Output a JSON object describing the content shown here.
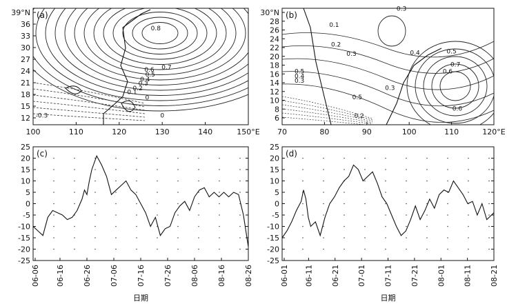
{
  "figure": {
    "panels": [
      "(a)",
      "(b)",
      "(c)",
      "(d)"
    ],
    "xlabel_c": "日期",
    "xlabel_d": "日期"
  },
  "chart_data": [
    {
      "type": "contour",
      "panel": "(a)",
      "x_ticks": [
        "100",
        "110",
        "120",
        "130",
        "140",
        "150°E"
      ],
      "y_ticks": [
        "39°N",
        "36",
        "33",
        "30",
        "27",
        "24",
        "21",
        "18",
        "15",
        "12"
      ],
      "xlim": [
        100,
        150
      ],
      "ylim": [
        10,
        39
      ],
      "contour_labels": [
        {
          "text": "0.8",
          "lon": 128.5,
          "lat": 33.5
        },
        {
          "text": "0.7",
          "lon": 131.0,
          "lat": 23.8
        },
        {
          "text": "0.6",
          "lon": 127.0,
          "lat": 23.2
        },
        {
          "text": "0.5",
          "lon": 127.2,
          "lat": 22.0
        },
        {
          "text": "0.4",
          "lon": 126.0,
          "lat": 20.8
        },
        {
          "text": "0.3",
          "lon": 125.6,
          "lat": 19.8
        },
        {
          "text": "0.2",
          "lon": 124.3,
          "lat": 18.6
        },
        {
          "text": "0.1",
          "lon": 123.0,
          "lat": 17.6
        },
        {
          "text": "0",
          "lon": 126.5,
          "lat": 16.3
        },
        {
          "text": "-0.3",
          "lon": 102.0,
          "lat": 11.8
        },
        {
          "text": "0",
          "lon": 130.0,
          "lat": 11.8
        }
      ]
    },
    {
      "type": "contour",
      "panel": "(b)",
      "x_ticks": [
        "70",
        "80",
        "90",
        "100",
        "110",
        "120°E"
      ],
      "y_ticks": [
        "30°N",
        "28",
        "26",
        "24",
        "22",
        "20",
        "18",
        "16",
        "14",
        "12",
        "10",
        "8",
        "6"
      ],
      "xlim": [
        70,
        125
      ],
      "ylim": [
        5,
        30
      ],
      "contour_labels": [
        {
          "text": "0.3",
          "lon": 101.0,
          "lat": 29.5
        },
        {
          "text": "0.1",
          "lon": 83.5,
          "lat": 26.0
        },
        {
          "text": "0.2",
          "lon": 84.0,
          "lat": 21.8
        },
        {
          "text": "0.3",
          "lon": 88.0,
          "lat": 19.8
        },
        {
          "text": "0.4",
          "lon": 104.5,
          "lat": 20.0
        },
        {
          "text": "0.5",
          "lon": 114.0,
          "lat": 20.3
        },
        {
          "text": "0.6",
          "lon": 113.0,
          "lat": 16.0
        },
        {
          "text": "0.7",
          "lon": 115.0,
          "lat": 17.5
        },
        {
          "text": "0.5",
          "lon": 74.5,
          "lat": 16.0
        },
        {
          "text": "0.4",
          "lon": 74.5,
          "lat": 15.0
        },
        {
          "text": "0.3",
          "lon": 74.5,
          "lat": 14.0
        },
        {
          "text": "0.5",
          "lon": 89.5,
          "lat": 10.5
        },
        {
          "text": "0.3",
          "lon": 98.0,
          "lat": 12.5
        },
        {
          "text": "0.2",
          "lon": 90.0,
          "lat": 6.5
        },
        {
          "text": "0.6",
          "lon": 115.5,
          "lat": 8.0
        }
      ]
    },
    {
      "type": "line",
      "panel": "(c)",
      "x_ticks": [
        "06-06",
        "06-16",
        "06-26",
        "07-06",
        "07-16",
        "07-26",
        "08-06",
        "08-16",
        "08-26"
      ],
      "y_ticks": [
        "25",
        "20",
        "15",
        "10",
        "5",
        "0",
        "-5",
        "-10",
        "-15",
        "-20",
        "-25"
      ],
      "ylim": [
        -25,
        25
      ],
      "xlim": [
        0,
        88
      ],
      "series": [
        {
          "x": [
            0,
            2,
            4,
            6,
            8,
            10,
            12,
            14,
            16,
            18,
            20,
            21,
            22,
            23,
            24,
            26,
            28,
            30,
            32,
            34,
            36,
            38,
            40,
            42,
            44,
            46,
            48,
            50,
            52,
            54,
            56,
            58,
            60,
            62,
            64,
            66,
            68,
            70,
            72,
            74,
            76,
            78,
            80,
            82,
            84,
            86,
            88
          ],
          "y": [
            -10,
            -12,
            -14,
            -6,
            -3,
            -4,
            -5,
            -7,
            -6,
            -3,
            2,
            6,
            4,
            10,
            15,
            21,
            17,
            12,
            4,
            6,
            8,
            10,
            6,
            4,
            0,
            -4,
            -10,
            -6,
            -14,
            -11,
            -10,
            -4,
            -1,
            1,
            -3,
            3,
            6,
            7,
            3,
            5,
            3,
            5,
            3,
            5,
            4,
            -5,
            -19
          ]
        }
      ]
    },
    {
      "type": "line",
      "panel": "(d)",
      "x_ticks": [
        "06-01",
        "06-11",
        "06-21",
        "07-01",
        "07-11",
        "07-21",
        "08-01",
        "08-11",
        "08-21"
      ],
      "y_ticks": [
        "25",
        "20",
        "15",
        "10",
        "5",
        "0",
        "-5",
        "-10",
        "-15",
        "-20",
        "-25"
      ],
      "ylim": [
        -25,
        25
      ],
      "xlim": [
        0,
        89
      ],
      "series": [
        {
          "x": [
            0,
            2,
            4,
            6,
            8,
            9,
            10,
            11,
            12,
            14,
            16,
            18,
            20,
            22,
            24,
            26,
            28,
            30,
            32,
            34,
            36,
            38,
            40,
            42,
            44,
            46,
            48,
            50,
            52,
            54,
            56,
            58,
            60,
            62,
            64,
            66,
            68,
            70,
            72,
            74,
            76,
            78,
            80,
            82,
            84,
            86,
            89
          ],
          "y": [
            -15,
            -12,
            -8,
            -3,
            1,
            6,
            2,
            -6,
            -10,
            -8,
            -14,
            -6,
            0,
            3,
            7,
            10,
            12,
            17,
            15,
            10,
            12,
            14,
            9,
            3,
            0,
            -5,
            -10,
            -14,
            -12,
            -7,
            -1,
            -7,
            -3,
            2,
            -2,
            4,
            6,
            5,
            10,
            7,
            4,
            0,
            1,
            -5,
            0,
            -7,
            -4
          ]
        }
      ]
    }
  ]
}
